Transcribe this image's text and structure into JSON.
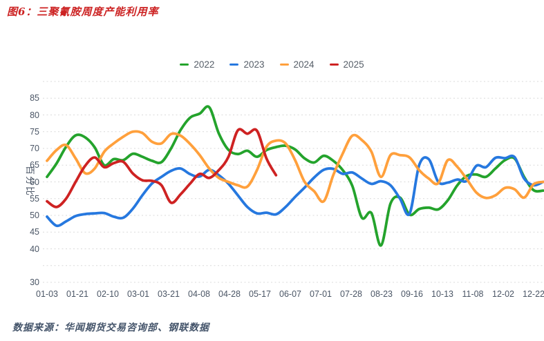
{
  "title": "图6：三聚氰胺周度产能利用率",
  "source": "数据来源：华闻期货交易咨询部、钢联数据",
  "colors": {
    "title_red": "#cc2222",
    "source_blue_gray": "#44546a",
    "axis_text": "#4a5565",
    "legend_text": "#565e68",
    "gridline": "#d9d9d9"
  },
  "chart_data": {
    "type": "line",
    "title": "图6：三聚氰胺周度产能利用率",
    "xlabel": "",
    "ylabel": "百分比",
    "ylim": [
      30,
      90
    ],
    "grid": "horizontal dashed, every 5 units from 30 to 90",
    "yticks_labeled": [
      85,
      80,
      75,
      70,
      65,
      60,
      55,
      50,
      45,
      40,
      30
    ],
    "yticks_gridlines": [
      30,
      35,
      40,
      45,
      50,
      55,
      60,
      65,
      70,
      75,
      80,
      85,
      90
    ],
    "x_tick_labels": [
      "01-03",
      "01-21",
      "02-10",
      "03-01",
      "03-21",
      "04-08",
      "04-28",
      "05-17",
      "06-07",
      "07-01",
      "07-28",
      "08-23",
      "09-16",
      "10-13",
      "11-08",
      "12-02",
      "12-22"
    ],
    "x_note": "weekly data points, evenly spaced; ticks every ~3 weeks; last label clipped at image edge",
    "legend_position": "top-center",
    "series": [
      {
        "name": "2022",
        "color": "#24a32c",
        "values": [
          61.5,
          65.5,
          70.5,
          73.9,
          73.3,
          70.3,
          65.0,
          66.8,
          66.5,
          68.4,
          67.5,
          66.3,
          65.9,
          70.0,
          75.5,
          79.2,
          80.4,
          82.3,
          74.5,
          69.6,
          68.3,
          69.3,
          67.5,
          69.5,
          70.4,
          70.8,
          69.7,
          67.0,
          65.8,
          67.8,
          66.3,
          63.5,
          58.8,
          49.3,
          50.7,
          41.0,
          53.5,
          55.3,
          50.2,
          51.9,
          52.3,
          51.8,
          54.5,
          59.0,
          61.8,
          62.2,
          61.5,
          64.0,
          66.5,
          67.0,
          61.5,
          57.5,
          57.4
        ]
      },
      {
        "name": "2023",
        "color": "#2678df",
        "values": [
          49.6,
          46.9,
          48.2,
          49.8,
          50.4,
          50.6,
          50.7,
          49.6,
          49.3,
          52.0,
          56.0,
          59.5,
          61.5,
          63.3,
          64.0,
          62.3,
          61.6,
          63.6,
          62.0,
          59.5,
          56.0,
          52.5,
          50.6,
          50.8,
          50.3,
          52.5,
          55.5,
          58.3,
          61.3,
          63.6,
          63.9,
          62.4,
          62.8,
          61.0,
          59.4,
          60.2,
          59.0,
          55.0,
          50.5,
          65.0,
          66.8,
          60.0,
          59.8,
          60.7,
          60.3,
          64.8,
          64.4,
          67.2,
          67.1,
          67.4,
          61.0,
          59.0,
          60.0
        ]
      },
      {
        "name": "2024",
        "color": "#ffa03c",
        "values": [
          66.3,
          69.5,
          71.0,
          67.0,
          62.6,
          64.0,
          69.0,
          71.5,
          73.5,
          75.0,
          74.6,
          72.0,
          71.5,
          74.3,
          73.8,
          71.3,
          68.0,
          64.0,
          61.2,
          60.0,
          59.0,
          58.6,
          63.5,
          70.5,
          72.3,
          71.5,
          66.5,
          60.0,
          57.2,
          54.2,
          62.0,
          68.5,
          73.8,
          72.5,
          69.0,
          61.5,
          68.0,
          68.0,
          67.3,
          63.5,
          61.0,
          59.6,
          66.5,
          64.5,
          60.8,
          56.8,
          55.2,
          56.0,
          58.2,
          57.8,
          55.3,
          59.3,
          60.0
        ]
      },
      {
        "name": "2025",
        "color": "#ce2222",
        "values": [
          54.2,
          52.5,
          55.0,
          60.0,
          64.8,
          67.3,
          64.4,
          65.6,
          66.0,
          62.5,
          60.5,
          60.3,
          59.0,
          53.8,
          56.3,
          59.5,
          62.4,
          61.2,
          63.5,
          67.4,
          75.4,
          74.4,
          75.3,
          67.0,
          62.0
        ]
      }
    ]
  }
}
